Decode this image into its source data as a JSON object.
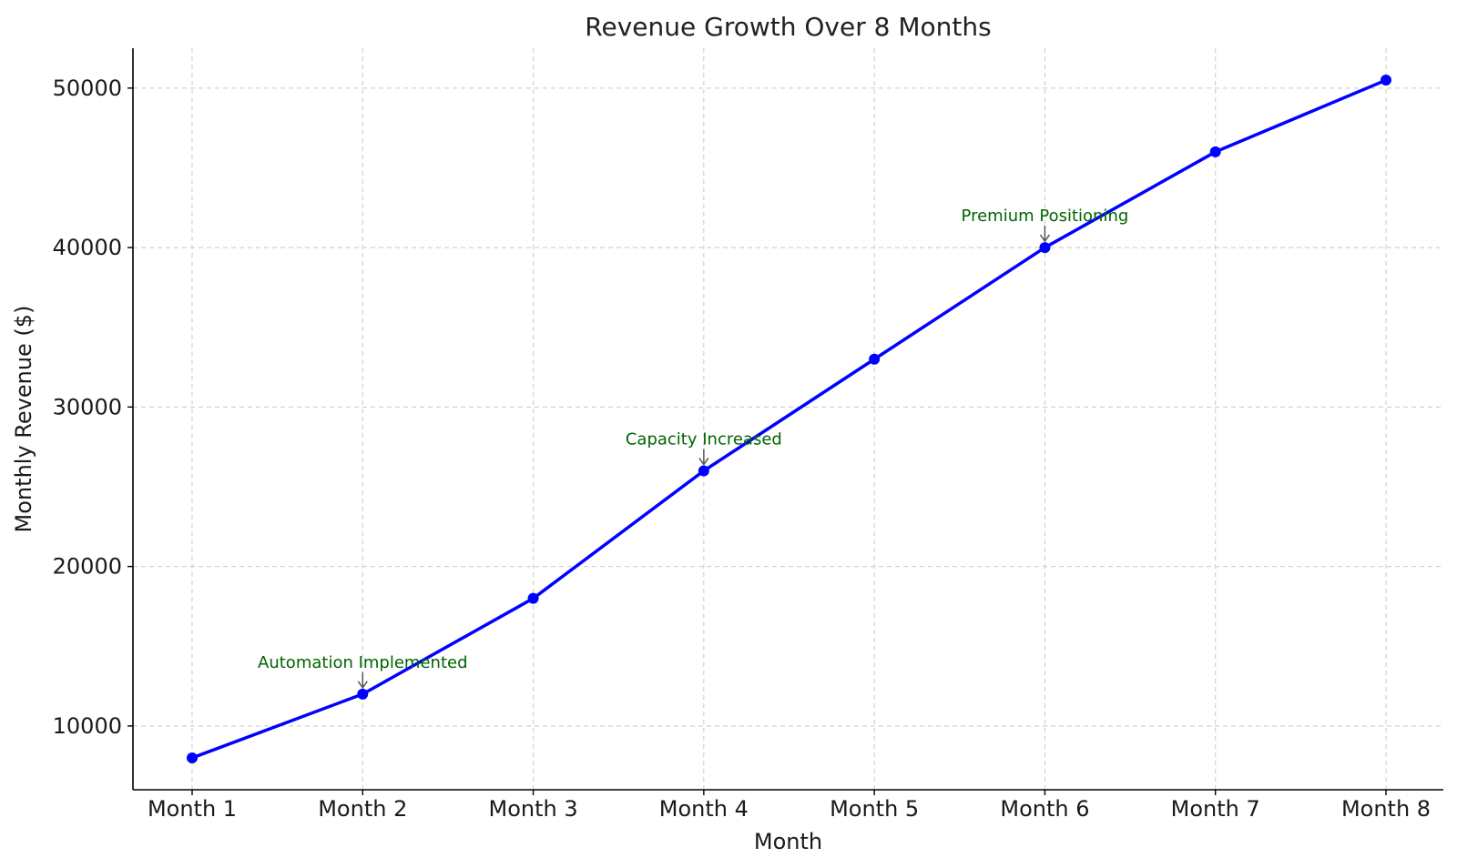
{
  "chart_data": {
    "type": "line",
    "title": "Revenue Growth Over 8 Months",
    "xlabel": "Month",
    "ylabel": "Monthly Revenue ($)",
    "categories": [
      "Month 1",
      "Month 2",
      "Month 3",
      "Month 4",
      "Month 5",
      "Month 6",
      "Month 7",
      "Month 8"
    ],
    "series": [
      {
        "values": [
          8000,
          12000,
          18000,
          26000,
          33000,
          40000,
          46000,
          50500
        ],
        "color": "#0000ff",
        "marker": "circle"
      }
    ],
    "ylim": [
      6000,
      52500
    ],
    "yticks": [
      10000,
      20000,
      30000,
      40000,
      50000
    ],
    "ytick_labels": [
      "10000",
      "20000",
      "30000",
      "40000",
      "50000"
    ],
    "grid": true,
    "annotations": [
      {
        "text": "Automation Implemented",
        "category": "Month 2",
        "value": 12000
      },
      {
        "text": "Capacity Increased",
        "category": "Month 4",
        "value": 26000
      },
      {
        "text": "Premium Positioning",
        "category": "Month 6",
        "value": 40000
      }
    ],
    "annotation_color": "#006400",
    "arrow_color": "#555555"
  }
}
